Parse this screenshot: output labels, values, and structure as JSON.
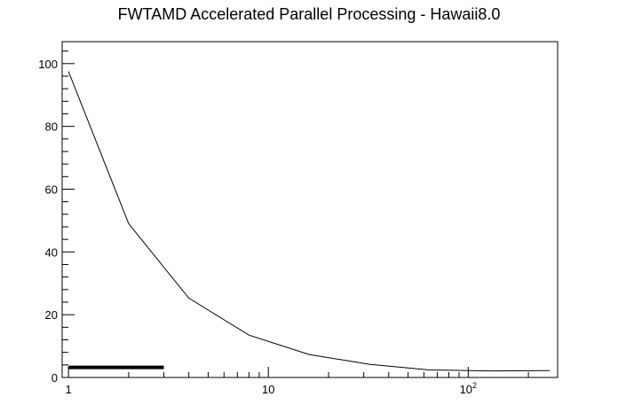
{
  "chart_data": {
    "type": "line",
    "title": "FWTAMD Accelerated Parallel Processing - Hawaii8.0",
    "xlabel": "",
    "ylabel": "",
    "x_scale": "log",
    "xlim": [
      0.93,
      280
    ],
    "ylim": [
      0,
      107
    ],
    "grid": false,
    "x_ticks": [
      {
        "value": 1,
        "base": "1",
        "exp": ""
      },
      {
        "value": 10,
        "base": "10",
        "exp": ""
      },
      {
        "value": 100,
        "base": "10",
        "exp": "2"
      }
    ],
    "y_ticks": [
      0,
      20,
      40,
      60,
      80,
      100
    ],
    "series": [
      {
        "x": [
          1,
          2,
          4,
          8,
          16,
          32,
          64,
          128,
          256
        ],
        "y": [
          97.5,
          49,
          25.3,
          13.5,
          7.3,
          4.2,
          2.4,
          2.1,
          2.2
        ]
      }
    ],
    "bar_segment": {
      "x_start": 1,
      "x_end": 3,
      "y": 3.2
    },
    "colors": {
      "line": "#000000",
      "axis": "#000000",
      "background": "#ffffff"
    }
  }
}
